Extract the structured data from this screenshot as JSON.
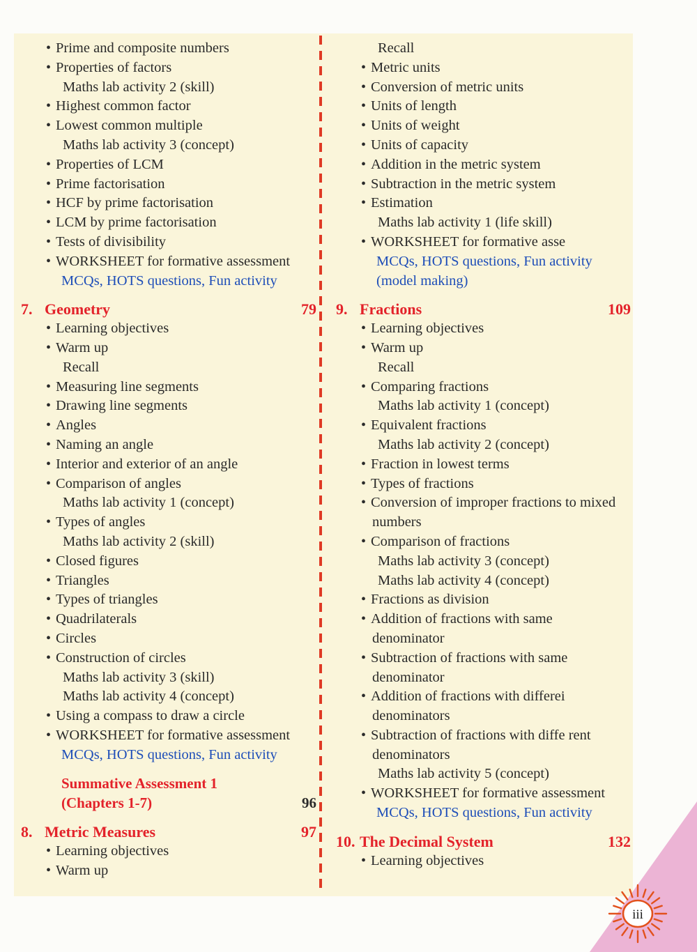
{
  "page": {
    "number_label": "iii",
    "panel_bg": "#faf5da",
    "accent_red": "#e3222a",
    "accent_blue": "#1d4db8",
    "divider_color": "#df3a25",
    "corner_pink": "#ecb4d5",
    "sun_icon_color": "#e2511c"
  },
  "glyphs": {
    "bullet": "•"
  },
  "columns": [
    {
      "rows": [
        {
          "kind": "entry",
          "text": "Prime and composite numbers"
        },
        {
          "kind": "entry",
          "text": "Properties of factors"
        },
        {
          "kind": "sub",
          "text": "Maths lab activity 2 (skill)"
        },
        {
          "kind": "entry",
          "text": "Highest common factor"
        },
        {
          "kind": "entry",
          "text": "Lowest common multiple"
        },
        {
          "kind": "sub",
          "text": "Maths lab activity 3 (concept)"
        },
        {
          "kind": "entry",
          "text": "Properties of LCM"
        },
        {
          "kind": "entry",
          "text": "Prime factorisation"
        },
        {
          "kind": "entry",
          "text": "HCF by prime factorisation"
        },
        {
          "kind": "entry",
          "text": "LCM by prime factorisation"
        },
        {
          "kind": "entry",
          "text": "Tests of divisibility"
        },
        {
          "kind": "entry",
          "text": "WORKSHEET for formative assessment"
        },
        {
          "kind": "blue",
          "text": "MCQs, HOTS questions, Fun activity"
        },
        {
          "kind": "chapter",
          "num": "7.",
          "title": "Geometry",
          "page": "79"
        },
        {
          "kind": "entry",
          "text": "Learning objectives"
        },
        {
          "kind": "entry",
          "text": "Warm up"
        },
        {
          "kind": "sub",
          "text": "Recall"
        },
        {
          "kind": "entry",
          "text": "Measuring line segments"
        },
        {
          "kind": "entry",
          "text": "Drawing line segments"
        },
        {
          "kind": "entry",
          "text": "Angles"
        },
        {
          "kind": "entry",
          "text": "Naming an angle"
        },
        {
          "kind": "entry",
          "text": "Interior and exterior of an angle"
        },
        {
          "kind": "entry",
          "text": "Comparison of angles"
        },
        {
          "kind": "sub",
          "text": "Maths lab activity 1 (concept)"
        },
        {
          "kind": "entry",
          "text": "Types of angles"
        },
        {
          "kind": "sub",
          "text": "Maths lab activity 2 (skill)"
        },
        {
          "kind": "entry",
          "text": "Closed figures"
        },
        {
          "kind": "entry",
          "text": "Triangles"
        },
        {
          "kind": "entry",
          "text": "Types of triangles"
        },
        {
          "kind": "entry",
          "text": "Quadrilaterals"
        },
        {
          "kind": "entry",
          "text": "Circles"
        },
        {
          "kind": "entry",
          "text": "Construction of circles"
        },
        {
          "kind": "sub",
          "text": "Maths lab activity 3 (skill)"
        },
        {
          "kind": "sub",
          "text": "Maths lab activity 4 (concept)"
        },
        {
          "kind": "entry",
          "text": "Using a compass to draw a circle"
        },
        {
          "kind": "entry",
          "text": "WORKSHEET for formative assessment"
        },
        {
          "kind": "blue",
          "text": "MCQs, HOTS questions, Fun activity"
        },
        {
          "kind": "red",
          "text": "Summative Assessment 1",
          "gap": true
        },
        {
          "kind": "red",
          "text": "(Chapters 1-7)",
          "page": "96",
          "page_dark": true
        },
        {
          "kind": "chapter",
          "num": "8.",
          "title": "Metric Measures",
          "page": "97"
        },
        {
          "kind": "entry",
          "text": "Learning objectives"
        },
        {
          "kind": "entry",
          "text": "Warm up"
        }
      ]
    },
    {
      "rows": [
        {
          "kind": "sub",
          "text": "Recall"
        },
        {
          "kind": "entry",
          "text": "Metric units"
        },
        {
          "kind": "entry",
          "text": "Conversion of metric units"
        },
        {
          "kind": "entry",
          "text": "Units of length"
        },
        {
          "kind": "entry",
          "text": "Units of weight"
        },
        {
          "kind": "entry",
          "text": "Units of capacity"
        },
        {
          "kind": "entry",
          "text": "Addition in the metric system"
        },
        {
          "kind": "entry",
          "text": "Subtraction in the metric system"
        },
        {
          "kind": "entry",
          "text": "Estimation"
        },
        {
          "kind": "sub",
          "text": "Maths lab activity 1 (life skill)"
        },
        {
          "kind": "entry",
          "text": "WORKSHEET for formative asse"
        },
        {
          "kind": "blue",
          "text": "MCQs, HOTS questions, Fun activity"
        },
        {
          "kind": "blue",
          "text": "(model making)"
        },
        {
          "kind": "chapter",
          "num": "9.",
          "title": "Fractions",
          "page": "109"
        },
        {
          "kind": "entry",
          "text": "Learning objectives"
        },
        {
          "kind": "entry",
          "text": "Warm up"
        },
        {
          "kind": "sub",
          "text": "Recall"
        },
        {
          "kind": "entry",
          "text": "Comparing fractions"
        },
        {
          "kind": "sub",
          "text": "Maths lab activity 1 (concept)"
        },
        {
          "kind": "entry",
          "text": "Equivalent fractions"
        },
        {
          "kind": "sub",
          "text": "Maths lab activity 2 (concept)"
        },
        {
          "kind": "entry",
          "text": "Fraction in lowest terms"
        },
        {
          "kind": "entry",
          "text": "Types of fractions"
        },
        {
          "kind": "entry",
          "text": "Conversion of improper fractions to mixed"
        },
        {
          "kind": "cont",
          "text": "numbers"
        },
        {
          "kind": "entry",
          "text": "Comparison of fractions"
        },
        {
          "kind": "sub",
          "text": "Maths lab activity 3 (concept)"
        },
        {
          "kind": "sub",
          "text": "Maths lab activity 4 (concept)"
        },
        {
          "kind": "entry",
          "text": "Fractions as division"
        },
        {
          "kind": "entry",
          "text": "Addition of fractions with same"
        },
        {
          "kind": "cont",
          "text": "denominator"
        },
        {
          "kind": "entry",
          "text": "Subtraction of fractions with same"
        },
        {
          "kind": "cont",
          "text": "denominator"
        },
        {
          "kind": "entry",
          "text": "Addition of fractions with differei"
        },
        {
          "kind": "cont",
          "text": "denominators"
        },
        {
          "kind": "entry",
          "text": "Subtraction of fractions with diffe rent"
        },
        {
          "kind": "cont",
          "text": "denominators"
        },
        {
          "kind": "sub",
          "text": "Maths lab activity 5 (concept)"
        },
        {
          "kind": "entry",
          "text": "WORKSHEET for formative assessment"
        },
        {
          "kind": "blue",
          "text": "MCQs, HOTS questions, Fun activity"
        },
        {
          "kind": "chapter",
          "num": "10.",
          "title": "The Decimal System",
          "page": "132"
        },
        {
          "kind": "entry",
          "text": "Learning objectives"
        }
      ]
    }
  ]
}
